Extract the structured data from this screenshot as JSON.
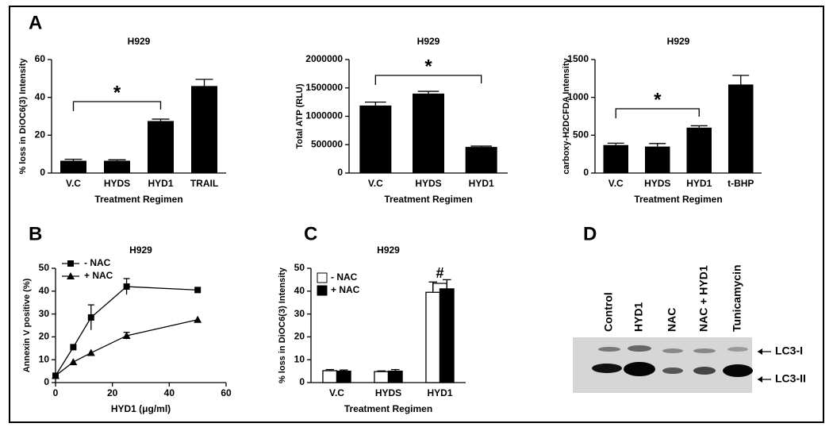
{
  "panel_labels": [
    "A",
    "B",
    "C",
    "D"
  ],
  "chart_data": [
    {
      "type": "bar",
      "title": "H929",
      "ylabel": "% loss in DiOC6(3) Intensity",
      "xlabel": "Treatment Regimen",
      "categories": [
        "V.C",
        "HYDS",
        "HYD1",
        "TRAIL"
      ],
      "values": [
        6.5,
        6.5,
        27.5,
        46
      ],
      "errors": [
        0.8,
        0.5,
        1,
        3.5
      ],
      "color": "#000000",
      "ylim": [
        0,
        60
      ],
      "yticks": [
        0,
        20,
        40,
        60
      ],
      "annotation": "*"
    },
    {
      "type": "bar",
      "title": "H929",
      "ylabel": "Total ATP (RLU)",
      "xlabel": "Treatment Regimen",
      "categories": [
        "V.C",
        "HYDS",
        "HYD1"
      ],
      "values": [
        1190000,
        1400000,
        460000
      ],
      "errors": [
        60000,
        40000,
        15000
      ],
      "color": "#000000",
      "ylim": [
        0,
        2000000
      ],
      "yticks": [
        0,
        500000,
        1000000,
        1500000,
        2000000
      ],
      "annotation": "*"
    },
    {
      "type": "bar",
      "title": "H929",
      "ylabel": "carboxy-H2DCFDA Intensity",
      "xlabel": "Treatment Regimen",
      "categories": [
        "V.C",
        "HYDS",
        "HYD1",
        "t-BHP"
      ],
      "values": [
        370,
        350,
        600,
        1170
      ],
      "errors": [
        25,
        40,
        25,
        120
      ],
      "color": "#000000",
      "ylim": [
        0,
        1500
      ],
      "yticks": [
        0,
        500,
        1000,
        1500
      ],
      "annotation": "*"
    },
    {
      "type": "line",
      "title": "H929",
      "ylabel": "Annexin V positive (%)",
      "xlabel": "HYD1 (μg/ml)",
      "x": [
        0,
        6.25,
        12.5,
        25,
        50
      ],
      "series": [
        {
          "name": "- NAC",
          "color": "#000000",
          "marker": "square",
          "values": [
            3,
            15.5,
            28.5,
            42,
            40.5
          ],
          "errors": [
            0,
            0,
            5.5,
            3.5,
            0
          ]
        },
        {
          "name": "+ NAC",
          "color": "#000000",
          "marker": "triangle",
          "values": [
            3,
            9,
            13,
            20.5,
            27.5
          ],
          "errors": [
            0,
            0,
            0,
            1.5,
            0
          ]
        }
      ],
      "xlim": [
        0,
        60
      ],
      "xticks": [
        0,
        20,
        40,
        60
      ],
      "ylim": [
        0,
        50
      ],
      "yticks": [
        0,
        10,
        20,
        30,
        40,
        50
      ],
      "legend": "upper left"
    },
    {
      "type": "grouped_bar",
      "title": "H929",
      "ylabel": "% loss in DiOC6(3) Intensity",
      "xlabel": "Treatment Regimen",
      "categories": [
        "V.C",
        "HYDS",
        "HYD1"
      ],
      "series": [
        {
          "name": "- NAC",
          "color": "#ffffff",
          "values": [
            5.2,
            4.8,
            39.5
          ],
          "errors": [
            0.5,
            0.3,
            4.5
          ]
        },
        {
          "name": "+ NAC",
          "color": "#000000",
          "values": [
            5,
            5,
            41
          ],
          "errors": [
            0.5,
            0.7,
            4
          ]
        }
      ],
      "ylim": [
        0,
        50
      ],
      "yticks": [
        0,
        10,
        20,
        30,
        40,
        50
      ],
      "legend": "upper left",
      "annotation": "#"
    }
  ],
  "blot": {
    "lanes": [
      "Control",
      "HYD1",
      "NAC",
      "NAC + HYD1",
      "Tunicamycin"
    ],
    "bands": [
      "LC3-I",
      "LC3-II"
    ]
  }
}
